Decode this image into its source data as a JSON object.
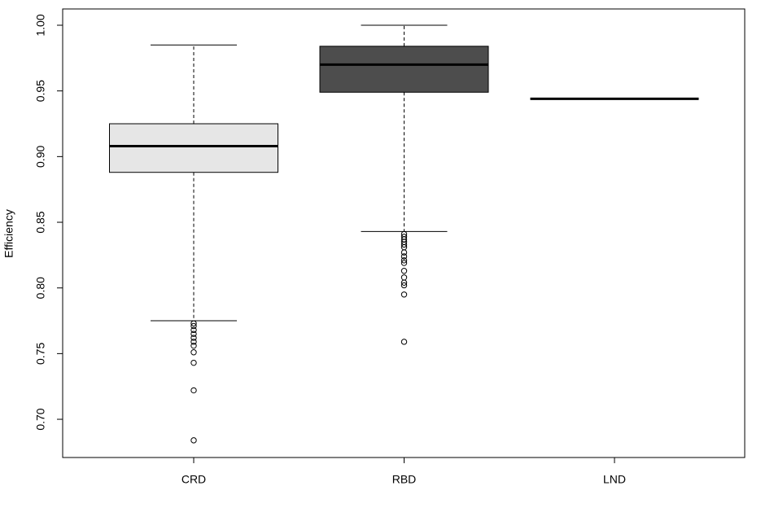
{
  "chart_data": {
    "type": "boxplot",
    "y_label": "Efficiency",
    "categories": [
      "CRD",
      "RBD",
      "LND"
    ],
    "colors": [
      "#e6e6e6",
      "#4d4d4d",
      "#ffffff"
    ],
    "whisker_low": [
      0.775,
      0.843,
      0.944
    ],
    "q1": [
      0.888,
      0.949,
      0.944
    ],
    "median": [
      0.908,
      0.97,
      0.944
    ],
    "q3": [
      0.925,
      0.984,
      0.944
    ],
    "whisker_high": [
      0.985,
      1.0,
      0.944
    ],
    "outliers": [
      [
        0.773,
        0.771,
        0.768,
        0.765,
        0.762,
        0.759,
        0.756,
        0.751,
        0.743,
        0.722,
        0.684
      ],
      [
        0.841,
        0.839,
        0.837,
        0.835,
        0.833,
        0.831,
        0.827,
        0.824,
        0.821,
        0.819,
        0.813,
        0.808,
        0.804,
        0.802,
        0.795,
        0.759
      ],
      []
    ],
    "ylim": [
      0.6709,
      1.0124
    ],
    "yticks": [
      {
        "value": 0.7,
        "label": "0.70"
      },
      {
        "value": 0.75,
        "label": "0.75"
      },
      {
        "value": 0.8,
        "label": "0.80"
      },
      {
        "value": 0.85,
        "label": "0.85"
      },
      {
        "value": 0.9,
        "label": "0.90"
      },
      {
        "value": 0.95,
        "label": "0.95"
      },
      {
        "value": 1.0,
        "label": "1.00"
      }
    ]
  }
}
